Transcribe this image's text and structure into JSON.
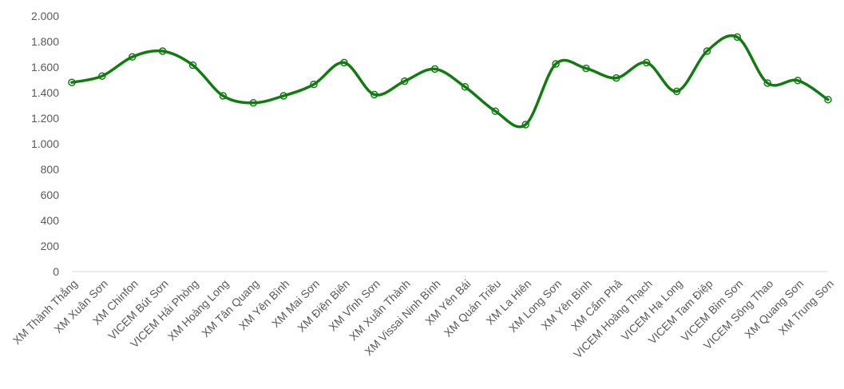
{
  "chart_data": {
    "type": "line",
    "title": "",
    "xlabel": "",
    "ylabel": "",
    "ylim": [
      0,
      2000
    ],
    "yticks": [
      0,
      200,
      400,
      600,
      800,
      1000,
      1200,
      1400,
      1600,
      1800,
      2000
    ],
    "ytick_labels": [
      "0",
      "200",
      "400",
      "600",
      "800",
      "1.000",
      "1.200",
      "1.400",
      "1.600",
      "1.800",
      "2.000"
    ],
    "grid": false,
    "legend": "none",
    "smooth": true,
    "color": "#107C10",
    "categories": [
      "XM Thành Thắng",
      "XM Xuân Sơn",
      "XM Chinfon",
      "VICEM Bút Sơn",
      "VICEM Hải Phòng",
      "XM Hoàng Long",
      "XM Tân Quang",
      "XM Yên Bình",
      "XM Mai Sơn",
      "XM Điện Biên",
      "XM Vĩnh Sơn",
      "XM Xuân Thành",
      "XM Vissai Ninh Bình",
      "XM Yên Bái",
      "XM Quán Triều",
      "XM La Hiên",
      "XM Long Sơn",
      "XM Yên Bình",
      "XM Cẩm Phả",
      "VICEM Hoàng Thạch",
      "VICEM Hạ Long",
      "VICEM Tam Điệp",
      "VICEM Bỉm Sơn",
      "VICEM Sông Thao",
      "XM Quang Sơn",
      "XM Trung Sơn"
    ],
    "values": [
      1480,
      1530,
      1680,
      1725,
      1615,
      1375,
      1320,
      1375,
      1465,
      1635,
      1385,
      1490,
      1585,
      1445,
      1255,
      1150,
      1625,
      1590,
      1515,
      1635,
      1410,
      1725,
      1835,
      1475,
      1495,
      1345
    ]
  }
}
